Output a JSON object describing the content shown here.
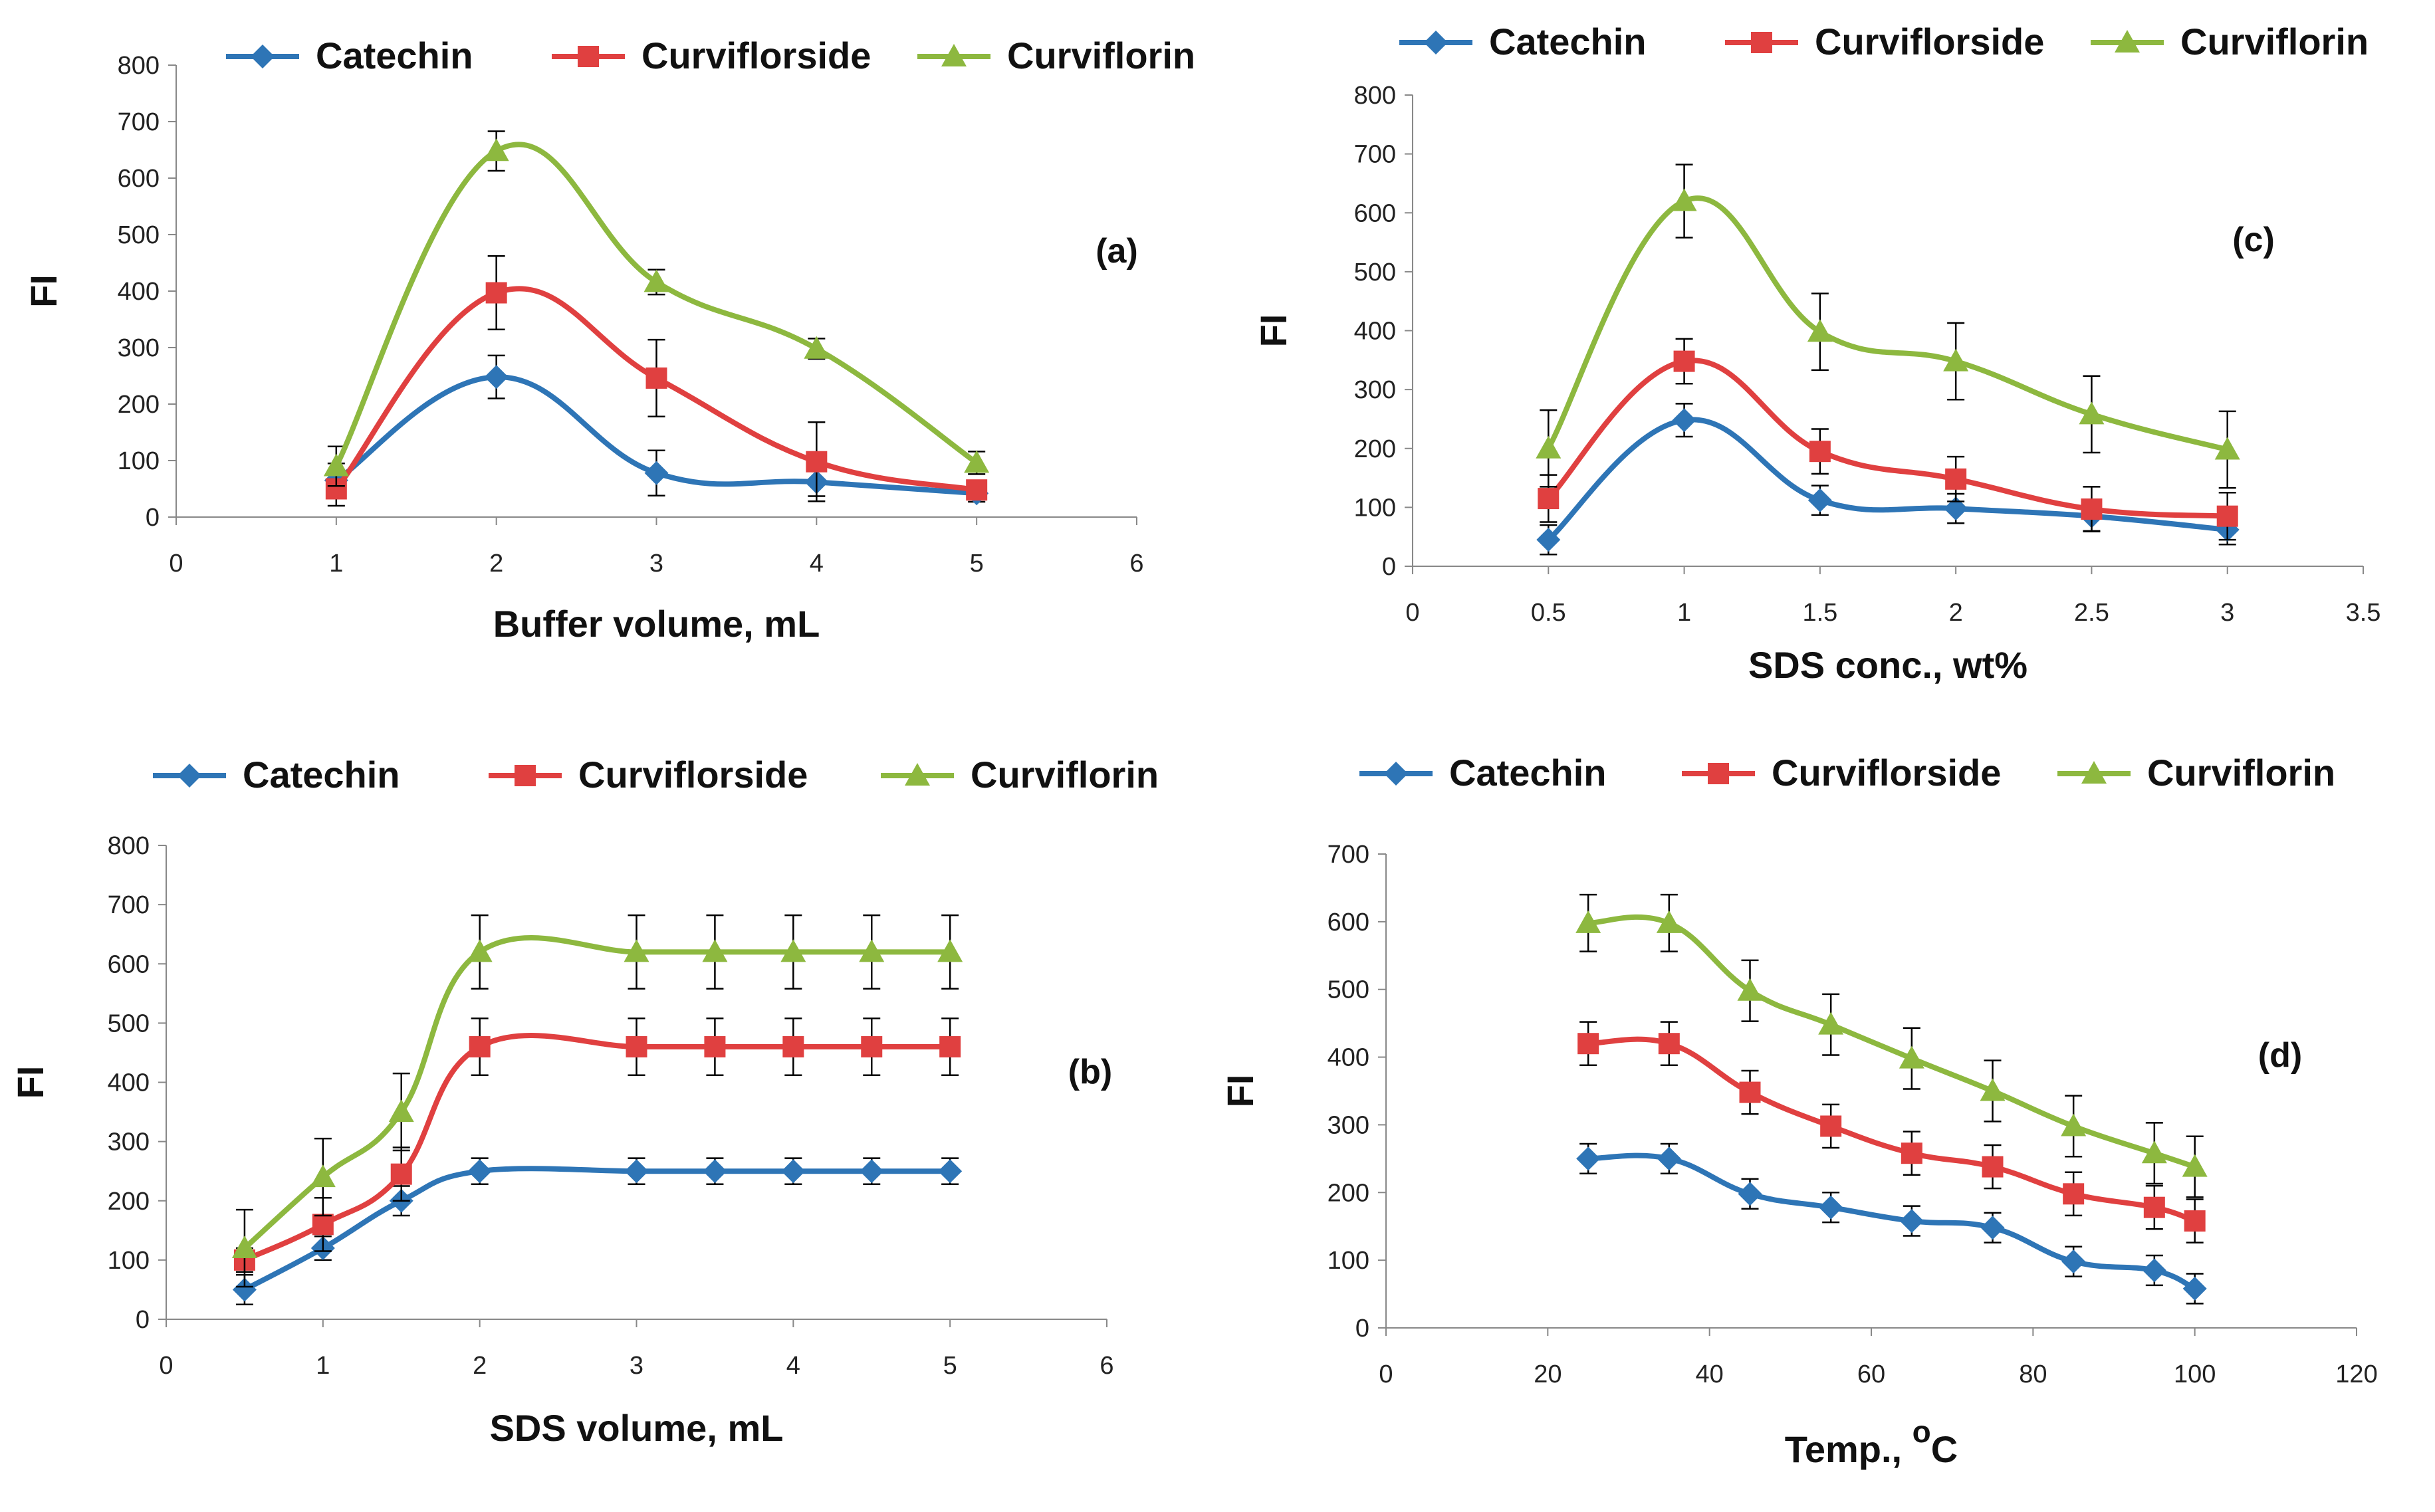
{
  "series_names": [
    "Catechin",
    "Curviflorside",
    "Curviflorin"
  ],
  "series_colors": [
    "#2E75B6",
    "#E04040",
    "#8DB83F"
  ],
  "chart_data": [
    {
      "id": "a",
      "type": "line",
      "panel_label": "(a)",
      "xlabel": "Buffer volume, mL",
      "ylabel": "FI",
      "xlim": [
        0,
        6
      ],
      "ylim": [
        0,
        800
      ],
      "xticks": [
        0,
        1,
        2,
        3,
        4,
        5,
        6
      ],
      "yticks": [
        0,
        100,
        200,
        300,
        400,
        500,
        600,
        700,
        800
      ],
      "x": [
        1,
        2,
        3,
        4,
        5
      ],
      "series": [
        {
          "name": "Catechin",
          "values": [
            65,
            248,
            78,
            62,
            42
          ],
          "errors": [
            30,
            38,
            40,
            25,
            15
          ]
        },
        {
          "name": "Curviflorside",
          "values": [
            50,
            397,
            246,
            98,
            48
          ],
          "errors": [
            30,
            65,
            68,
            70,
            15
          ]
        },
        {
          "name": "Curviflorin",
          "values": [
            90,
            648,
            416,
            298,
            96
          ],
          "errors": [
            35,
            35,
            22,
            18,
            20
          ]
        }
      ]
    },
    {
      "id": "b",
      "type": "line",
      "panel_label": "(b)",
      "xlabel": "SDS volume, mL",
      "ylabel": "FI",
      "xlim": [
        0,
        6
      ],
      "ylim": [
        0,
        800
      ],
      "xticks": [
        0,
        1,
        2,
        3,
        4,
        5,
        6
      ],
      "yticks": [
        0,
        100,
        200,
        300,
        400,
        500,
        600,
        700,
        800
      ],
      "x": [
        0.5,
        1,
        1.5,
        2,
        3,
        3.5,
        4,
        4.5,
        5
      ],
      "series": [
        {
          "name": "Catechin",
          "values": [
            50,
            120,
            200,
            250,
            250,
            250,
            250,
            250,
            250
          ],
          "errors": [
            25,
            20,
            25,
            22,
            22,
            22,
            22,
            22,
            22
          ]
        },
        {
          "name": "Curviflorside",
          "values": [
            100,
            160,
            245,
            460,
            460,
            460,
            460,
            460,
            460
          ],
          "errors": [
            20,
            45,
            45,
            48,
            48,
            48,
            48,
            48,
            48
          ]
        },
        {
          "name": "Curviflorin",
          "values": [
            120,
            240,
            350,
            620,
            620,
            620,
            620,
            620,
            620
          ],
          "errors": [
            65,
            65,
            65,
            62,
            62,
            62,
            62,
            62,
            62
          ]
        }
      ]
    },
    {
      "id": "c",
      "type": "line",
      "panel_label": "(c)",
      "xlabel": "SDS conc., wt%",
      "ylabel": "FI",
      "xlim": [
        0,
        3.5
      ],
      "ylim": [
        0,
        800
      ],
      "xticks": [
        0,
        0.5,
        1,
        1.5,
        2,
        2.5,
        3,
        3.5
      ],
      "yticks": [
        0,
        100,
        200,
        300,
        400,
        500,
        600,
        700,
        800
      ],
      "x": [
        0.5,
        1,
        1.5,
        2,
        2.5,
        3
      ],
      "series": [
        {
          "name": "Catechin",
          "values": [
            45,
            248,
            112,
            98,
            85,
            62
          ],
          "errors": [
            25,
            28,
            25,
            25,
            25,
            25
          ]
        },
        {
          "name": "Curviflorside",
          "values": [
            115,
            348,
            195,
            148,
            97,
            85
          ],
          "errors": [
            40,
            38,
            38,
            38,
            38,
            40
          ]
        },
        {
          "name": "Curviflorin",
          "values": [
            200,
            620,
            398,
            348,
            258,
            198
          ],
          "errors": [
            65,
            62,
            65,
            65,
            65,
            65
          ]
        }
      ]
    },
    {
      "id": "d",
      "type": "line",
      "panel_label": "(d)",
      "xlabel": "Temp., ",
      "xlabel_sup": "o",
      "xlabel_tail": "C",
      "ylabel": "FI",
      "xlim": [
        0,
        120
      ],
      "ylim": [
        0,
        700
      ],
      "xticks": [
        0,
        20,
        40,
        60,
        80,
        100,
        120
      ],
      "yticks": [
        0,
        100,
        200,
        300,
        400,
        500,
        600,
        700
      ],
      "x": [
        25,
        35,
        45,
        55,
        65,
        75,
        85,
        95,
        100
      ],
      "series": [
        {
          "name": "Catechin",
          "values": [
            250,
            250,
            198,
            178,
            158,
            148,
            98,
            85,
            58
          ],
          "errors": [
            22,
            22,
            22,
            22,
            22,
            22,
            22,
            22,
            22
          ]
        },
        {
          "name": "Curviflorside",
          "values": [
            420,
            420,
            348,
            298,
            258,
            238,
            198,
            178,
            158
          ],
          "errors": [
            32,
            32,
            32,
            32,
            32,
            32,
            32,
            32,
            32
          ]
        },
        {
          "name": "Curviflorin",
          "values": [
            598,
            598,
            498,
            448,
            398,
            350,
            298,
            258,
            238
          ],
          "errors": [
            42,
            42,
            45,
            45,
            45,
            45,
            45,
            45,
            45
          ]
        }
      ]
    }
  ]
}
